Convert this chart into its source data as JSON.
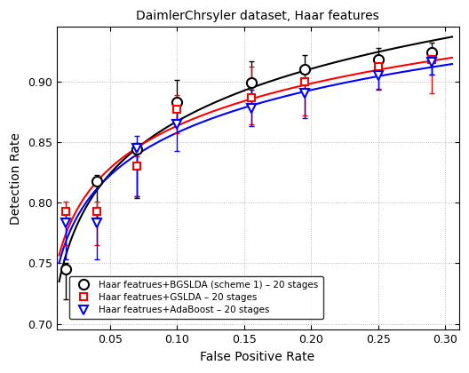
{
  "title": "DaimlerChrsyler dataset, Haar features",
  "xlabel": "False Positive Rate",
  "ylabel": "Detection Rate",
  "xlim": [
    0.01,
    0.31
  ],
  "ylim": [
    0.695,
    0.945
  ],
  "xticks": [
    0.05,
    0.1,
    0.15,
    0.2,
    0.25,
    0.3
  ],
  "yticks": [
    0.7,
    0.75,
    0.8,
    0.85,
    0.9
  ],
  "bgslda_x": [
    0.017,
    0.04,
    0.07,
    0.1,
    0.155,
    0.195,
    0.25,
    0.29
  ],
  "bgslda_y": [
    0.745,
    0.818,
    0.844,
    0.883,
    0.899,
    0.91,
    0.918,
    0.924
  ],
  "bgslda_yerr_low": [
    0.025,
    0.03,
    0.04,
    0.018,
    0.018,
    0.012,
    0.01,
    0.018
  ],
  "bgslda_yerr_high": [
    0.005,
    0.005,
    0.005,
    0.018,
    0.018,
    0.012,
    0.01,
    0.008
  ],
  "gslda_x": [
    0.017,
    0.04,
    0.07,
    0.1,
    0.155,
    0.195,
    0.25,
    0.29
  ],
  "gslda_y": [
    0.793,
    0.793,
    0.83,
    0.877,
    0.887,
    0.9,
    0.912,
    0.918
  ],
  "gslda_yerr_low": [
    0.028,
    0.028,
    0.025,
    0.02,
    0.022,
    0.028,
    0.018,
    0.028
  ],
  "gslda_yerr_high": [
    0.008,
    0.008,
    0.008,
    0.012,
    0.025,
    0.01,
    0.005,
    0.005
  ],
  "ada_x": [
    0.017,
    0.04,
    0.07,
    0.1,
    0.155,
    0.195,
    0.25,
    0.29
  ],
  "ada_y": [
    0.783,
    0.783,
    0.845,
    0.865,
    0.878,
    0.89,
    0.905,
    0.916
  ],
  "ada_yerr_low": [
    0.03,
    0.03,
    0.04,
    0.022,
    0.015,
    0.02,
    0.012,
    0.01
  ],
  "ada_yerr_high": [
    0.01,
    0.01,
    0.01,
    0.012,
    0.015,
    0.008,
    0.008,
    0.005
  ],
  "legend_labels": [
    "Haar featrues+BGSLDA (scheme 1) – 20 stages",
    "Haar featrues+GSLDA – 20 stages",
    "Haar featrues+AdaBoost – 20 stages"
  ],
  "colors": [
    "black",
    "red",
    "blue"
  ]
}
